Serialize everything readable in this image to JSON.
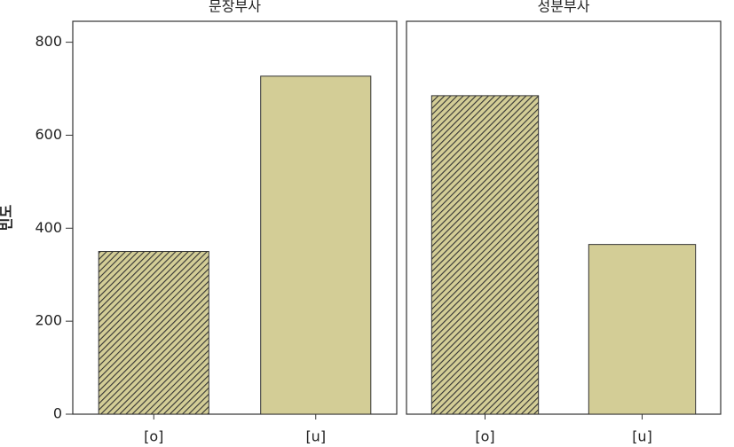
{
  "chart_data": [
    {
      "type": "bar",
      "title": "문장부사",
      "y_label": "빈도",
      "categories": [
        "[o]",
        "[u]"
      ],
      "values": [
        350,
        727
      ],
      "color": "#d3cd96",
      "hatch": [
        true,
        false
      ],
      "ylim": [
        0,
        845
      ],
      "yticks": [
        0,
        200,
        400,
        600,
        800
      ]
    },
    {
      "type": "bar",
      "title": "성분부사",
      "categories": [
        "[o]",
        "[u]"
      ],
      "values": [
        685,
        365
      ],
      "color": "#d3cd96",
      "hatch": [
        true,
        false
      ],
      "ylim": [
        0,
        845
      ]
    }
  ]
}
